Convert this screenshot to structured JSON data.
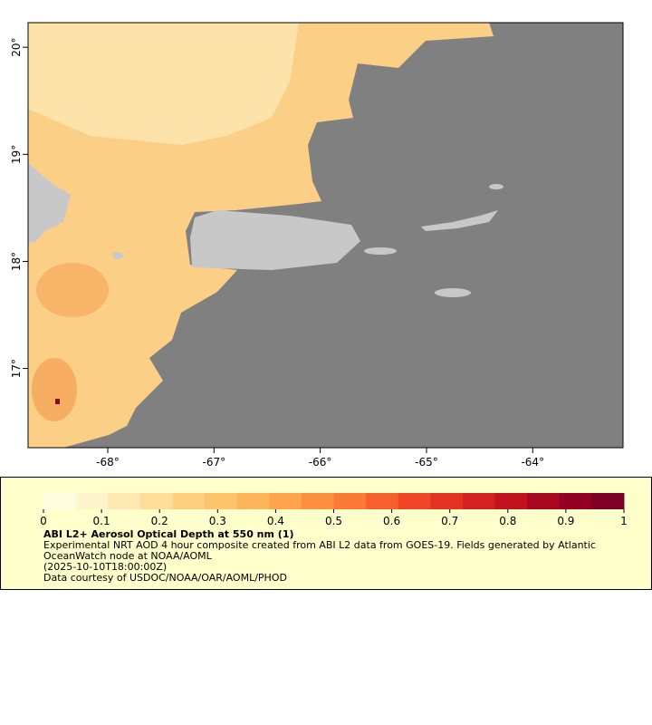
{
  "map": {
    "xlim": [
      -68.75,
      -63.15
    ],
    "ylim": [
      16.26,
      20.23
    ],
    "xticks": [
      {
        "value": -68,
        "label": "-68°"
      },
      {
        "value": -67,
        "label": "-67°"
      },
      {
        "value": -66,
        "label": "-66°"
      },
      {
        "value": -65,
        "label": "-65°"
      },
      {
        "value": -64,
        "label": "-64°"
      }
    ],
    "yticks": [
      {
        "value": 17,
        "label": "17°"
      },
      {
        "value": 18,
        "label": "18°"
      },
      {
        "value": 19,
        "label": "19°"
      },
      {
        "value": 20,
        "label": "20°"
      }
    ]
  },
  "colorbar": {
    "lim": [
      0,
      1
    ],
    "ticks": [
      0,
      0.1,
      0.2,
      0.3,
      0.4,
      0.5,
      0.6,
      0.7,
      0.8,
      0.9,
      1
    ],
    "colors": [
      "#fffde0",
      "#fff5cc",
      "#fee9b0",
      "#fedd98",
      "#fed080",
      "#fec46c",
      "#fdb45a",
      "#fda34c",
      "#fc8f40",
      "#fb7a36",
      "#f6602c",
      "#ef4726",
      "#e33222",
      "#d32020",
      "#c0131f",
      "#a8081f",
      "#920023",
      "#7f0026"
    ],
    "title": "ABI L2+ Aerosol Optical Depth at 550 nm (1)",
    "description": "Experimental NRT AOD 4 hour composite created from ABI L2 data from GOES-19. Fields generated by Atlantic OceanWatch node at NOAA/AOML",
    "time": "(2025-10-10T18:00:00Z)",
    "credit": "Data courtesy of USDOC/NOAA/OAR/AOML/PHOD"
  }
}
